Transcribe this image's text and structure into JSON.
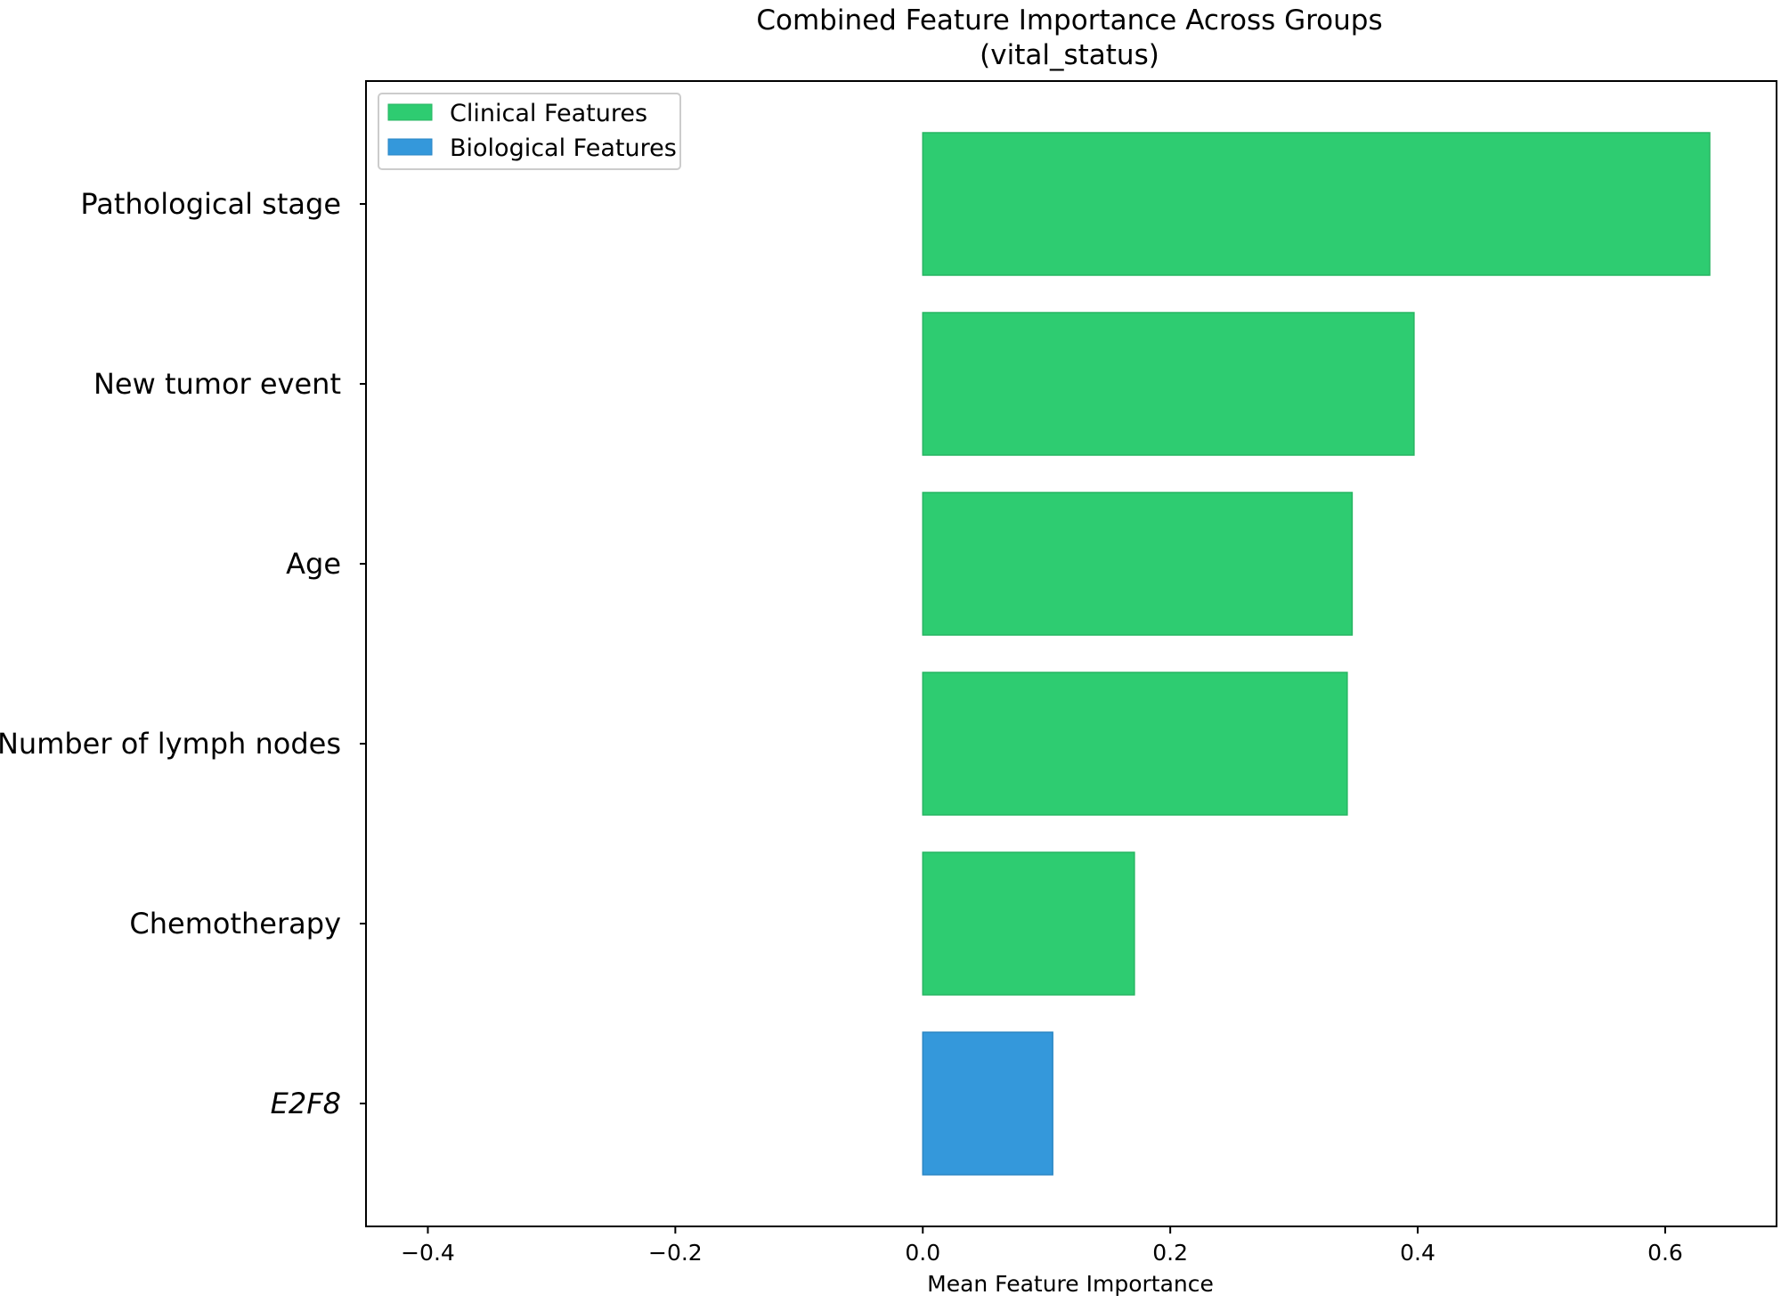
{
  "chart_data": {
    "type": "bar",
    "orientation": "horizontal",
    "title": "Combined Feature Importance Across Groups",
    "subtitle": "(vital_status)",
    "xlabel": "Mean Feature Importance",
    "ylabel": "",
    "xlim": [
      -0.45,
      0.69
    ],
    "xticks": [
      -0.4,
      -0.2,
      0.0,
      0.2,
      0.4,
      0.6
    ],
    "xtick_labels": [
      "−0.4",
      "−0.2",
      "0.0",
      "0.2",
      "0.4",
      "0.6"
    ],
    "grid": false,
    "legend_position": "top-left",
    "legend": [
      {
        "label": "Clinical Features",
        "color": "#2ecc71"
      },
      {
        "label": "Biological Features",
        "color": "#3498db"
      }
    ],
    "categories": [
      "Pathological stage",
      "New tumor event",
      "Age",
      "Number of lymph nodes",
      "Chemotherapy",
      "E2F8"
    ],
    "values": [
      0.636,
      0.397,
      0.347,
      0.343,
      0.171,
      0.105
    ],
    "groups": [
      "Clinical Features",
      "Clinical Features",
      "Clinical Features",
      "Clinical Features",
      "Clinical Features",
      "Biological Features"
    ],
    "italic_categories": [
      "E2F8"
    ]
  }
}
